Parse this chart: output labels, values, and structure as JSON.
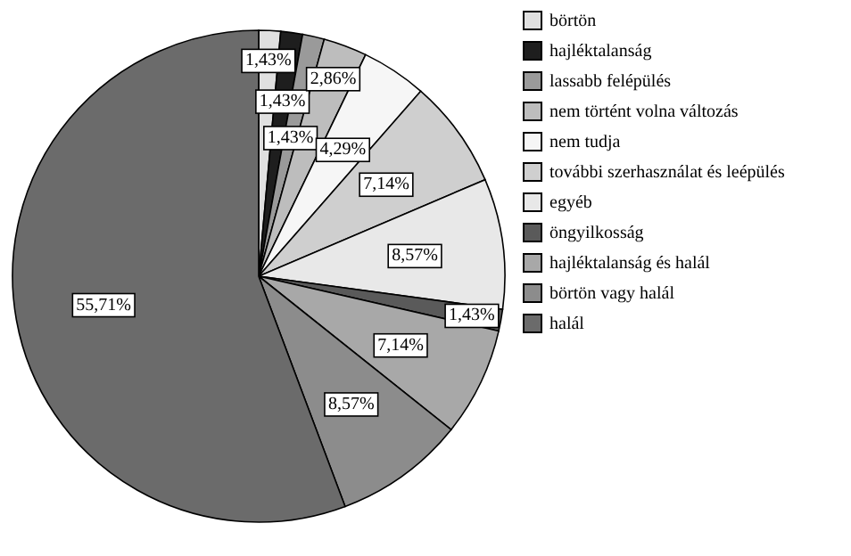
{
  "chart_data": {
    "type": "pie",
    "categories": [
      "börtön",
      "hajléktalanság",
      "lassabb felépülés",
      "nem történt volna változás",
      "nem tudja",
      "további szerhasználat és leépülés",
      "egyéb",
      "öngyilkosság",
      "hajléktalanság és halál",
      "börtön vagy halál",
      "halál"
    ],
    "values": [
      1.43,
      1.43,
      1.43,
      2.86,
      4.29,
      7.14,
      8.57,
      1.43,
      7.14,
      8.57,
      55.71
    ],
    "value_labels": [
      "1,43%",
      "1,43%",
      "1,43%",
      "2,86%",
      "4,29%",
      "7,14%",
      "8,57%",
      "1,43%",
      "7,14%",
      "8,57%",
      "55,71%"
    ],
    "colors": [
      "#e0e0e0",
      "#1e1e1e",
      "#9a9a9a",
      "#bdbdbd",
      "#f6f6f6",
      "#cfcfcf",
      "#e8e8e8",
      "#5a5a5a",
      "#a8a8a8",
      "#8c8c8c",
      "#6b6b6b"
    ],
    "legend": "right"
  }
}
